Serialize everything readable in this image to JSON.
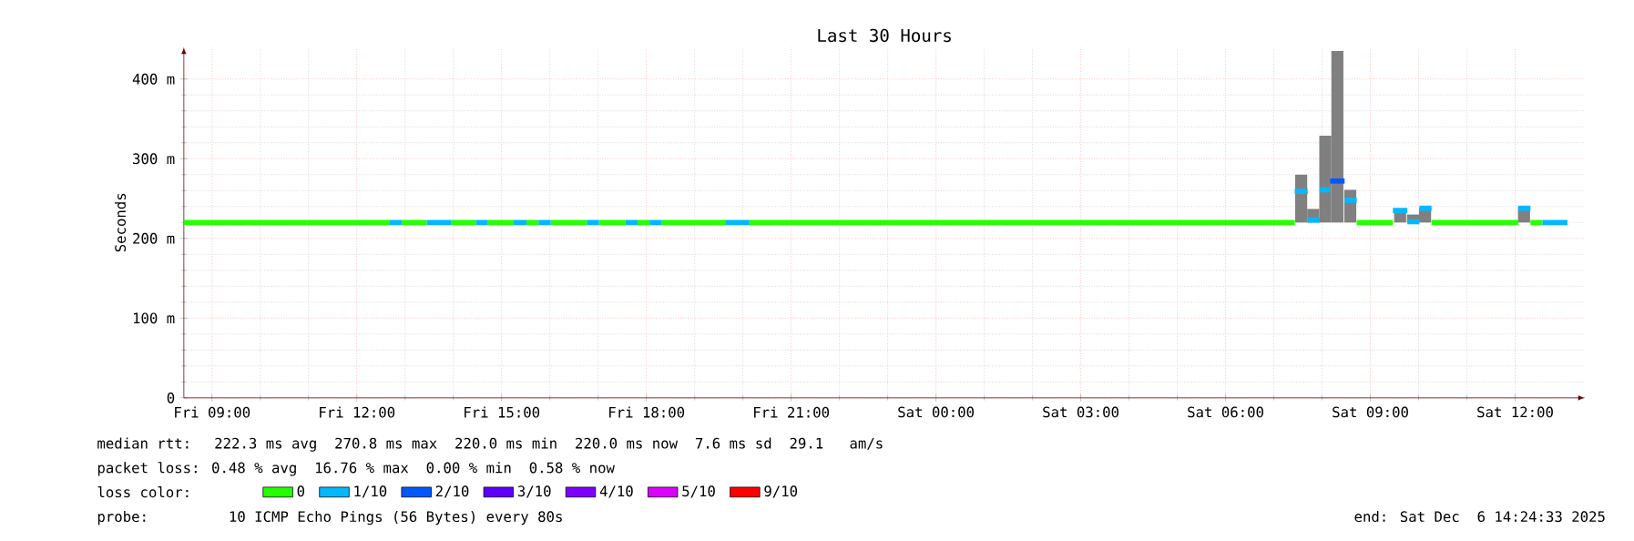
{
  "chart_data": {
    "type": "line",
    "title": "Last 30 Hours",
    "ylabel": "Seconds",
    "legend_title": "loss color:",
    "legend": "bottom",
    "grid": true,
    "xlim": [
      "2025-12-05T08:25",
      "2025-12-06T13:27"
    ],
    "ylim": [
      0,
      440
    ],
    "xticks": [
      {
        "value": "2025-12-05T09:00",
        "label": "Fri 09:00"
      },
      {
        "value": "2025-12-05T12:00",
        "label": "Fri 12:00"
      },
      {
        "value": "2025-12-05T15:00",
        "label": "Fri 15:00"
      },
      {
        "value": "2025-12-05T18:00",
        "label": "Fri 18:00"
      },
      {
        "value": "2025-12-05T21:00",
        "label": "Fri 21:00"
      },
      {
        "value": "2025-12-06T00:00",
        "label": "Sat 00:00"
      },
      {
        "value": "2025-12-06T03:00",
        "label": "Sat 03:00"
      },
      {
        "value": "2025-12-06T06:00",
        "label": "Sat 06:00"
      },
      {
        "value": "2025-12-06T09:00",
        "label": "Sat 09:00"
      },
      {
        "value": "2025-12-06T12:00",
        "label": "Sat 12:00"
      }
    ],
    "yticks": [
      0,
      {
        "value": 100,
        "label": "100 m"
      },
      {
        "value": 200,
        "label": "200 m"
      },
      {
        "value": 300,
        "label": "300 m"
      },
      {
        "value": 400,
        "label": "400 m"
      }
    ],
    "series": [
      {
        "type": "bar",
        "color": "#808080",
        "x": [
          "2025-12-06T07:34",
          "2025-12-06T07:49",
          "2025-12-06T08:04",
          "2025-12-06T08:19",
          "2025-12-06T08:35",
          "2025-12-06T09:37",
          "2025-12-06T09:53",
          "2025-12-06T10:08",
          "2025-12-06T12:11"
        ],
        "base": [
          220,
          220,
          220,
          220,
          220,
          220,
          220,
          220,
          220
        ],
        "values": [
          60,
          17,
          109,
          215,
          41,
          17,
          10,
          18,
          20
        ]
      },
      {
        "name": "0",
        "color": "#26ff00",
        "x": [
          "2025-12-05T08:25",
          "2025-12-05T12:41",
          null,
          "2025-12-05T12:56",
          "2025-12-05T13:27",
          null,
          "2025-12-05T13:57",
          "2025-12-05T14:28",
          null,
          "2025-12-05T14:43",
          "2025-12-05T15:15",
          null,
          "2025-12-05T15:31",
          "2025-12-05T15:46",
          null,
          "2025-12-05T16:01",
          "2025-12-05T16:46",
          null,
          "2025-12-05T17:01",
          "2025-12-05T17:34",
          null,
          "2025-12-05T17:49",
          "2025-12-05T18:04",
          null,
          "2025-12-05T18:19",
          "2025-12-05T19:38",
          null,
          "2025-12-05T20:08",
          "2025-12-06T07:26",
          null,
          "2025-12-06T08:43",
          "2025-12-06T09:28",
          null,
          "2025-12-06T10:16",
          "2025-12-06T12:04",
          null,
          "2025-12-06T12:19",
          "2025-12-06T12:34"
        ],
        "values": [
          220,
          220,
          null,
          220,
          220,
          null,
          220,
          220,
          null,
          220,
          220,
          null,
          220,
          220,
          null,
          220,
          220,
          null,
          220,
          220,
          null,
          220,
          220,
          null,
          220,
          220,
          null,
          220,
          220,
          null,
          220,
          220,
          null,
          220,
          220,
          null,
          220,
          220
        ]
      },
      {
        "name": "1/10",
        "color": "#00b8ff",
        "x": [
          "2025-12-05T12:41",
          "2025-12-05T12:56",
          null,
          "2025-12-05T13:27",
          "2025-12-05T13:57",
          null,
          "2025-12-05T14:28",
          "2025-12-05T14:43",
          null,
          "2025-12-05T15:15",
          "2025-12-05T15:31",
          null,
          "2025-12-05T15:46",
          "2025-12-05T16:01",
          null,
          "2025-12-05T16:46",
          "2025-12-05T17:01",
          null,
          "2025-12-05T17:34",
          "2025-12-05T17:49",
          null,
          "2025-12-05T18:04",
          "2025-12-05T18:19",
          null,
          "2025-12-05T19:38",
          "2025-12-05T20:08",
          null,
          "2025-12-06T07:26",
          "2025-12-06T07:42",
          null,
          "2025-12-06T07:42",
          "2025-12-06T07:57",
          null,
          "2025-12-06T07:57",
          "2025-12-06T08:10",
          null,
          "2025-12-06T08:28",
          "2025-12-06T08:43",
          null,
          "2025-12-06T09:28",
          "2025-12-06T09:46",
          null,
          "2025-12-06T09:46",
          "2025-12-06T10:01",
          null,
          "2025-12-06T10:01",
          "2025-12-06T10:16",
          null,
          "2025-12-06T12:04",
          "2025-12-06T12:19",
          null,
          "2025-12-06T12:34",
          "2025-12-06T13:05"
        ],
        "values": [
          220,
          220,
          null,
          220,
          220,
          null,
          220,
          220,
          null,
          220,
          220,
          null,
          220,
          220,
          null,
          220,
          220,
          null,
          220,
          220,
          null,
          220,
          220,
          null,
          220,
          220,
          null,
          259,
          259,
          null,
          223,
          223,
          null,
          261,
          261,
          null,
          248,
          248,
          null,
          235,
          235,
          null,
          221,
          221,
          null,
          238,
          238,
          null,
          238,
          238,
          null,
          220,
          220
        ]
      },
      {
        "name": "2/10",
        "color": "#0059ff",
        "x": [
          "2025-12-06T08:10",
          "2025-12-06T08:28"
        ],
        "values": [
          272,
          272
        ]
      },
      {
        "name": "3/10",
        "color": "#5e00ff"
      },
      {
        "name": "4/10",
        "color": "#7e00ff"
      },
      {
        "name": "5/10",
        "color": "#dd00ff"
      },
      {
        "name": "9/10",
        "color": "#ff0000"
      }
    ],
    "annotations": [
      "median rtt:  222.3 ms avg  270.8 ms max  220.0 ms min  220.0 ms now  7.6 ms sd  29.1   am/s",
      "packet loss: 0.48 % avg  16.76 % max  0.00 % min  0.58 % now",
      "probe:       10 ICMP Echo Pings (56 Bytes) every 80s",
      "end: Sat Dec  6 14:24:33 2025"
    ]
  }
}
